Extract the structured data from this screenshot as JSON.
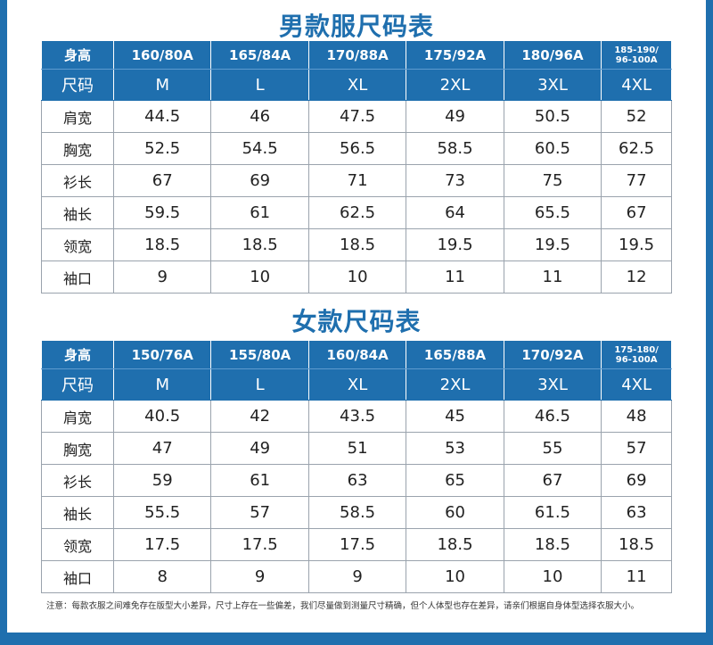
{
  "men": {
    "title": "男款服尺码表",
    "height_label": "身高",
    "size_label": "尺码",
    "heights": [
      "160/80A",
      "165/84A",
      "170/88A",
      "175/92A",
      "180/96A"
    ],
    "height_last_line1": "185-190/",
    "height_last_line2": "96-100A",
    "sizes": [
      "M",
      "L",
      "XL",
      "2XL",
      "3XL",
      "4XL"
    ],
    "rows": [
      {
        "label": "肩宽",
        "values": [
          "44.5",
          "46",
          "47.5",
          "49",
          "50.5",
          "52"
        ]
      },
      {
        "label": "胸宽",
        "values": [
          "52.5",
          "54.5",
          "56.5",
          "58.5",
          "60.5",
          "62.5"
        ]
      },
      {
        "label": "衫长",
        "values": [
          "67",
          "69",
          "71",
          "73",
          "75",
          "77"
        ]
      },
      {
        "label": "袖长",
        "values": [
          "59.5",
          "61",
          "62.5",
          "64",
          "65.5",
          "67"
        ]
      },
      {
        "label": "领宽",
        "values": [
          "18.5",
          "18.5",
          "18.5",
          "19.5",
          "19.5",
          "19.5"
        ]
      },
      {
        "label": "袖口",
        "values": [
          "9",
          "10",
          "10",
          "11",
          "11",
          "12"
        ]
      }
    ]
  },
  "women": {
    "title": "女款尺码表",
    "height_label": "身高",
    "size_label": "尺码",
    "heights": [
      "150/76A",
      "155/80A",
      "160/84A",
      "165/88A",
      "170/92A"
    ],
    "height_last_line1": "175-180/",
    "height_last_line2": "96-100A",
    "sizes": [
      "M",
      "L",
      "XL",
      "2XL",
      "3XL",
      "4XL"
    ],
    "rows": [
      {
        "label": "肩宽",
        "values": [
          "40.5",
          "42",
          "43.5",
          "45",
          "46.5",
          "48"
        ]
      },
      {
        "label": "胸宽",
        "values": [
          "47",
          "49",
          "51",
          "53",
          "55",
          "57"
        ]
      },
      {
        "label": "衫长",
        "values": [
          "59",
          "61",
          "63",
          "65",
          "67",
          "69"
        ]
      },
      {
        "label": "袖长",
        "values": [
          "55.5",
          "57",
          "58.5",
          "60",
          "61.5",
          "63"
        ]
      },
      {
        "label": "领宽",
        "values": [
          "17.5",
          "17.5",
          "17.5",
          "18.5",
          "18.5",
          "18.5"
        ]
      },
      {
        "label": "袖口",
        "values": [
          "8",
          "9",
          "9",
          "10",
          "10",
          "11"
        ]
      }
    ]
  },
  "note": "注意：每款衣服之间难免存在版型大小差异，尺寸上存在一些偏差，我们尽量做到测量尺寸精确，但个人体型也存在差异，请亲们根据自身体型选择衣服大小。",
  "colors": {
    "accent": "#1f6fae",
    "frame": "#1f6fae"
  }
}
